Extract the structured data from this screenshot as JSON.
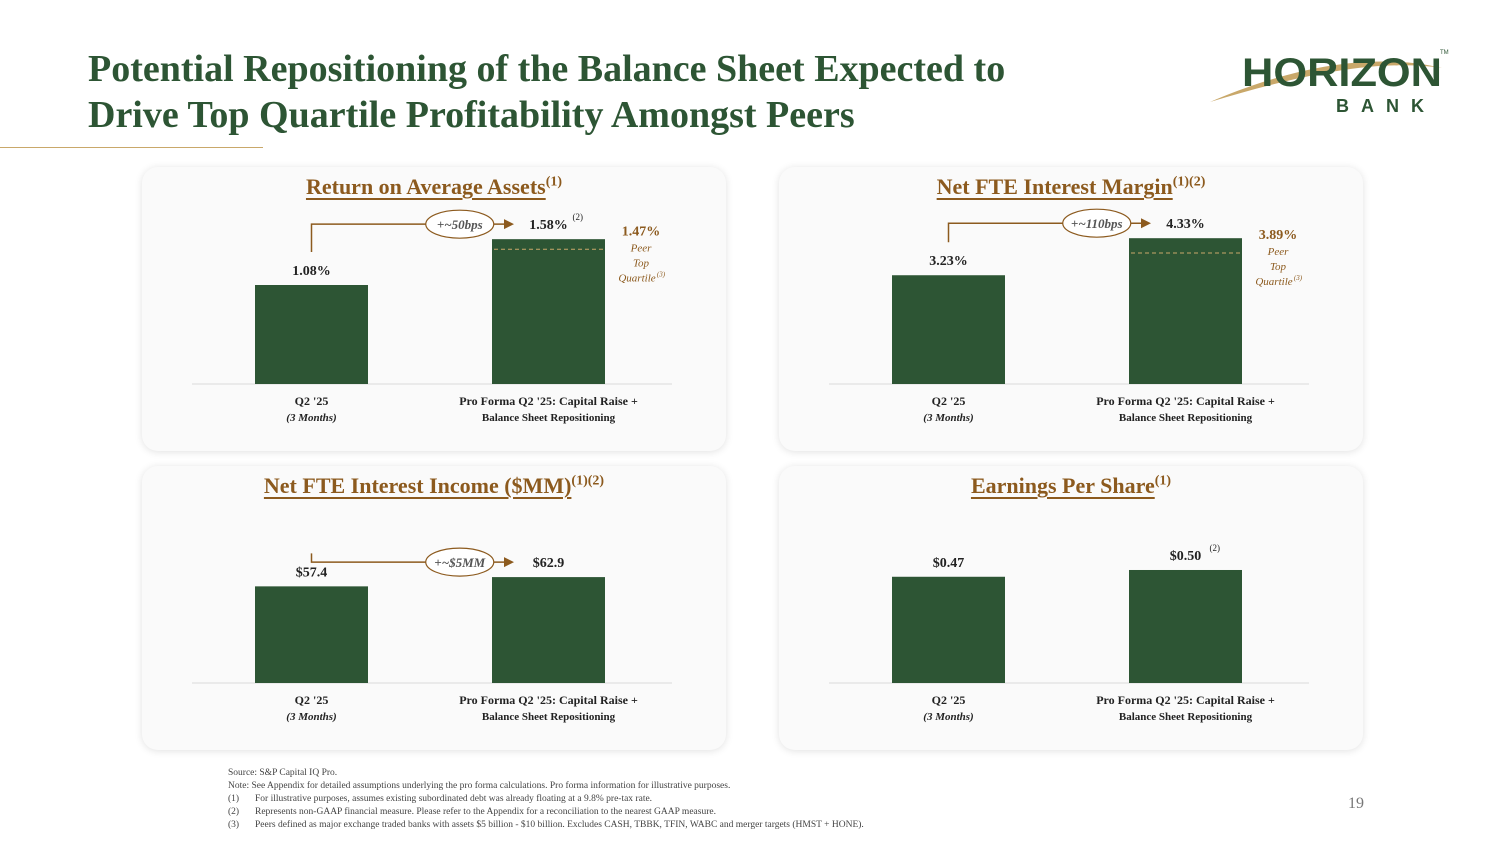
{
  "title": {
    "line1": "Potential Repositioning of the Balance Sheet Expected to",
    "line2": "Drive Top Quartile Profitability Amongst Peers"
  },
  "logo": {
    "name": "HORIZON",
    "sub": "BANK",
    "tm": "TM"
  },
  "colors": {
    "bar": "#2d5534",
    "accent": "#8c5a1e",
    "title": "#2d5534",
    "peer_line": "#c9a86a"
  },
  "chart_data": [
    {
      "type": "bar",
      "title": "Return on Average Assets",
      "title_sup": "(1)",
      "categories": [
        {
          "label": "Q2 '25",
          "sub": "(3 Months)"
        },
        {
          "label": "Pro Forma Q2 '25: Capital Raise +",
          "sub": "Balance Sheet Repositioning"
        }
      ],
      "values": [
        1.08,
        1.58
      ],
      "value_labels": [
        "1.08%",
        "1.58%"
      ],
      "value_sups": [
        "",
        "(2)"
      ],
      "ylim": [
        0,
        1.8
      ],
      "change_label": "+~50bps",
      "peer": {
        "value": 1.47,
        "label": "1.47%",
        "l1": "Peer",
        "l2": "Top",
        "l3": "Quartile",
        "sup": "(3)"
      }
    },
    {
      "type": "bar",
      "title": "Net FTE Interest Margin",
      "title_sup": "(1)(2)",
      "categories": [
        {
          "label": "Q2 '25",
          "sub": "(3 Months)"
        },
        {
          "label": "Pro Forma Q2 '25: Capital Raise +",
          "sub": "Balance Sheet Repositioning"
        }
      ],
      "values": [
        3.23,
        4.33
      ],
      "value_labels": [
        "3.23%",
        "4.33%"
      ],
      "value_sups": [
        "",
        ""
      ],
      "ylim": [
        0,
        4.9
      ],
      "change_label": "+~110bps",
      "peer": {
        "value": 3.89,
        "label": "3.89%",
        "l1": "Peer",
        "l2": "Top",
        "l3": "Quartile",
        "sup": "(3)"
      }
    },
    {
      "type": "bar",
      "title": "Net FTE Interest Income ($MM)",
      "title_sup": "(1)(2)",
      "categories": [
        {
          "label": "Q2 '25",
          "sub": "(3 Months)"
        },
        {
          "label": "Pro Forma Q2 '25: Capital Raise +",
          "sub": "Balance Sheet Repositioning"
        }
      ],
      "values": [
        57.4,
        62.9
      ],
      "value_labels": [
        "$57.4",
        "$62.9"
      ],
      "value_sups": [
        "",
        ""
      ],
      "ylim": [
        0,
        98
      ],
      "change_label": "+~$5MM",
      "peer": null
    },
    {
      "type": "bar",
      "title": "Earnings Per Share",
      "title_sup": "(1)",
      "categories": [
        {
          "label": "Q2 '25",
          "sub": "(3 Months)"
        },
        {
          "label": "Pro Forma Q2 '25: Capital Raise +",
          "sub": "Balance Sheet Repositioning"
        }
      ],
      "values": [
        0.47,
        0.5
      ],
      "value_labels": [
        "$0.47",
        "$0.50"
      ],
      "value_sups": [
        "",
        "(2)"
      ],
      "ylim": [
        0,
        0.73
      ],
      "change_label": "",
      "peer": null
    }
  ],
  "footnotes": {
    "source": "Source: S&P Capital IQ Pro.",
    "note": "Note: See Appendix for detailed assumptions underlying the pro forma calculations. Pro forma information for illustrative purposes.",
    "items": [
      {
        "mark": "(1)",
        "text": "For illustrative purposes, assumes existing subordinated debt was already floating at a 9.8% pre-tax rate."
      },
      {
        "mark": "(2)",
        "text": "Represents non-GAAP financial measure. Please refer to the Appendix for a reconciliation to the nearest GAAP measure."
      },
      {
        "mark": "(3)",
        "text": "Peers defined as major exchange traded banks with assets $5 billion - $10 billion. Excludes CASH, TBBK, TFIN, WABC and merger targets (HMST + HONE)."
      }
    ]
  },
  "page_number": "19"
}
